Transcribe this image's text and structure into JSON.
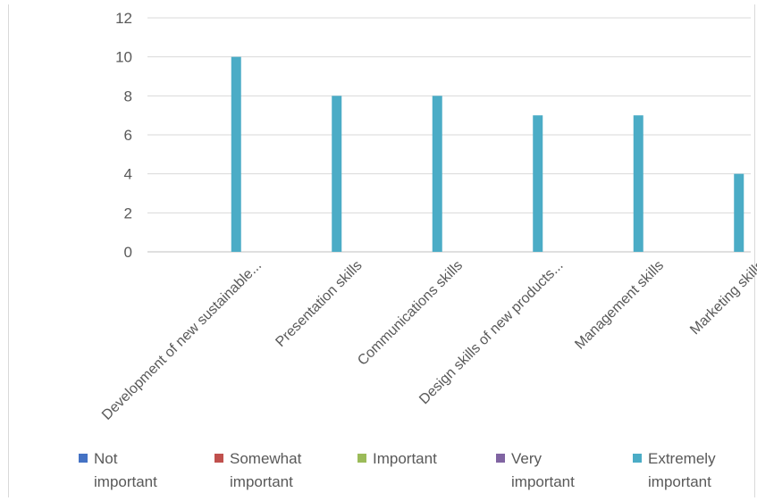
{
  "chart_data": {
    "type": "bar",
    "categories": [
      "Development of new sustainable...",
      "Presentation skills",
      "Communications skills",
      "Design skills of new products...",
      "Management skills",
      "Marketing skills"
    ],
    "series": [
      {
        "name": "Not important",
        "color": "#4472c4",
        "values": [
          0,
          0,
          0,
          0,
          0,
          0
        ]
      },
      {
        "name": "Somewhat important",
        "color": "#c0504d",
        "values": [
          0,
          0,
          0,
          0,
          0,
          0
        ]
      },
      {
        "name": "Important",
        "color": "#9bbb59",
        "values": [
          0,
          0,
          0,
          0,
          0,
          0
        ]
      },
      {
        "name": "Very important",
        "color": "#8064a2",
        "values": [
          0,
          0,
          0,
          0,
          0,
          0
        ]
      },
      {
        "name": "Extremely important",
        "color": "#4bacc6",
        "values": [
          10,
          8,
          8,
          7,
          7,
          4
        ]
      }
    ],
    "legend": [
      {
        "lines": [
          "Not",
          "important"
        ]
      },
      {
        "lines": [
          "Somewhat",
          "important"
        ]
      },
      {
        "lines": [
          "Important"
        ]
      },
      {
        "lines": [
          "Very",
          "important"
        ]
      },
      {
        "lines": [
          "Extremely",
          "important"
        ]
      }
    ],
    "yticks": [
      "0",
      "2",
      "4",
      "6",
      "8",
      "10",
      "12"
    ],
    "ylim": [
      0,
      12
    ],
    "grid": true,
    "legend_position": "bottom"
  }
}
